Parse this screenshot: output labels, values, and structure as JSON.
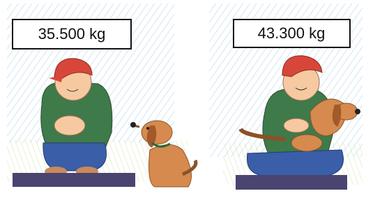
{
  "scales": [
    {
      "reading": "35.500 kg"
    },
    {
      "reading": "43.300 kg"
    }
  ]
}
